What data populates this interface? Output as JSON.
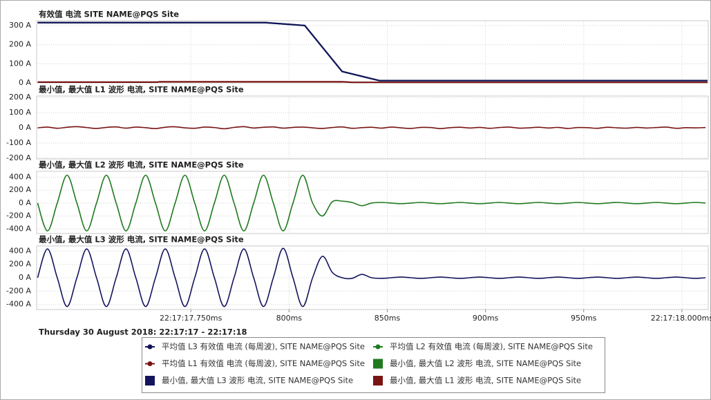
{
  "chart_data": [
    {
      "type": "line",
      "title": "有效值 电流 SITE NAME@PQS Site",
      "marker": "circle",
      "x": [
        672,
        733,
        734,
        788,
        808,
        827,
        832,
        846,
        1013
      ],
      "xlim": [
        671.5,
        1013.4
      ],
      "ylim": [
        0,
        325
      ],
      "yticks": [
        {
          "value": 0,
          "label": "0 A"
        },
        {
          "value": 100,
          "label": "100 A"
        },
        {
          "value": 200,
          "label": "200 A"
        },
        {
          "value": 300,
          "label": "300 A"
        }
      ],
      "grid": true,
      "series": [
        {
          "name": "平均值 L3 有效值 电流 (每周波), SITE NAME@PQS Site",
          "color": "#13135e",
          "values": [
            315,
            315,
            315,
            315,
            300,
            60,
            47,
            12,
            12
          ]
        },
        {
          "name": "平均值 L2 有效值 电流 (每周波), SITE NAME@PQS Site",
          "color": "#1f7a1f",
          "values": [
            315,
            315,
            315,
            315,
            300,
            60,
            47,
            12,
            12
          ]
        },
        {
          "name": "平均值 L1 有效值 电流 (每周波), SITE NAME@PQS Site",
          "color": "#7a1414",
          "values": [
            4,
            4,
            6,
            6,
            6,
            6,
            3,
            3,
            3
          ]
        }
      ]
    },
    {
      "type": "line",
      "title": "最小值, 最大值 L1 波形 电流, SITE NAME@PQS Site",
      "marker": "square",
      "x": [
        672,
        677,
        682,
        687,
        692,
        697,
        702,
        707,
        712,
        717,
        722,
        727,
        732,
        737,
        742,
        747,
        752,
        757,
        762,
        767,
        772,
        777,
        782,
        787,
        792,
        797,
        802,
        807,
        812,
        817,
        822,
        827,
        832,
        837,
        842,
        847,
        852,
        857,
        862,
        867,
        872,
        877,
        882,
        887,
        892,
        897,
        902,
        907,
        912,
        917,
        922,
        927,
        932,
        937,
        942,
        947,
        952,
        957,
        962,
        967,
        972,
        977,
        982,
        987,
        992,
        997,
        1002,
        1007,
        1012
      ],
      "xlim": [
        671.5,
        1013.4
      ],
      "ylim": [
        -205,
        210
      ],
      "yticks": [
        {
          "value": -200,
          "label": "-200 A"
        },
        {
          "value": -100,
          "label": "-100 A"
        },
        {
          "value": 0,
          "label": "0 A"
        },
        {
          "value": 100,
          "label": "100 A"
        },
        {
          "value": 200,
          "label": "200 A"
        }
      ],
      "grid": true,
      "series": [
        {
          "name": "最小值, 最大值  L1 波形 电流, SITE NAME@PQS Site",
          "color": "#7a1414",
          "values": [
            0,
            5,
            -3,
            4,
            8,
            2,
            -4,
            3,
            6,
            -2,
            5,
            1,
            -5,
            4,
            7,
            0,
            -3,
            5,
            2,
            -6,
            3,
            8,
            -1,
            4,
            6,
            -2,
            3,
            5,
            0,
            -4,
            2,
            6,
            -3,
            1,
            4,
            -2,
            5,
            0,
            -4,
            3,
            2,
            -5,
            1,
            4,
            -1,
            3,
            -3,
            2,
            5,
            -2,
            0,
            4,
            -1,
            3,
            -4,
            2,
            1,
            -3,
            4,
            0,
            -2,
            3,
            -1,
            2,
            5,
            -3,
            1,
            0,
            2
          ]
        }
      ]
    },
    {
      "type": "line",
      "title": "最小值, 最大值 L2 波形 电流, SITE NAME@PQS Site",
      "marker": "square",
      "x": [
        672,
        677,
        682,
        687,
        692,
        697,
        702,
        707,
        712,
        717,
        722,
        727,
        732,
        737,
        742,
        747,
        752,
        757,
        762,
        767,
        772,
        777,
        782,
        787,
        792,
        797,
        802,
        807,
        812,
        817,
        822,
        827,
        832,
        837,
        842,
        847,
        852,
        857,
        862,
        867,
        872,
        877,
        882,
        887,
        892,
        897,
        902,
        907,
        912,
        917,
        922,
        927,
        932,
        937,
        942,
        947,
        952,
        957,
        962,
        967,
        972,
        977,
        982,
        987,
        992,
        997,
        1002,
        1007,
        1012
      ],
      "xlim": [
        671.5,
        1013.4
      ],
      "ylim": [
        -470,
        490
      ],
      "yticks": [
        {
          "value": -400,
          "label": "-400 A"
        },
        {
          "value": -200,
          "label": "-200 A"
        },
        {
          "value": 0,
          "label": "0 A"
        },
        {
          "value": 200,
          "label": "200 A"
        },
        {
          "value": 400,
          "label": "400 A"
        }
      ],
      "grid": true,
      "series": [
        {
          "name": "最小值, 最大值  L2 波形 电流, SITE NAME@PQS Site",
          "color": "#1f7a1f",
          "values": [
            0,
            -430,
            0,
            430,
            0,
            -430,
            0,
            430,
            0,
            -430,
            0,
            430,
            0,
            -430,
            0,
            430,
            0,
            -430,
            0,
            430,
            0,
            -430,
            0,
            430,
            0,
            -430,
            0,
            430,
            0,
            -200,
            20,
            30,
            10,
            -40,
            0,
            10,
            0,
            -10,
            0,
            10,
            0,
            -10,
            0,
            10,
            0,
            -10,
            0,
            10,
            0,
            -10,
            0,
            10,
            0,
            -10,
            0,
            10,
            0,
            -10,
            0,
            10,
            0,
            -10,
            0,
            10,
            0,
            -10,
            0,
            10,
            0
          ]
        }
      ]
    },
    {
      "type": "line",
      "title": "最小值, 最大值 L3 波形 电流, SITE NAME@PQS Site",
      "marker": "square",
      "xlabel": "Thursday 30 August 2018: 22:17:17 - 22:17:18",
      "x": [
        672,
        677,
        682,
        687,
        692,
        697,
        702,
        707,
        712,
        717,
        722,
        727,
        732,
        737,
        742,
        747,
        752,
        757,
        762,
        767,
        772,
        777,
        782,
        787,
        792,
        797,
        802,
        807,
        812,
        817,
        822,
        827,
        832,
        837,
        842,
        847,
        852,
        857,
        862,
        867,
        872,
        877,
        882,
        887,
        892,
        897,
        902,
        907,
        912,
        917,
        922,
        927,
        932,
        937,
        942,
        947,
        952,
        957,
        962,
        967,
        972,
        977,
        982,
        987,
        992,
        997,
        1002,
        1007,
        1012
      ],
      "xlim": [
        671.5,
        1013.4
      ],
      "ylim": [
        -475,
        475
      ],
      "xticks": [
        {
          "value": 750,
          "label": "22:17:17.750ms"
        },
        {
          "value": 800,
          "label": "800ms"
        },
        {
          "value": 850,
          "label": "850ms"
        },
        {
          "value": 900,
          "label": "900ms"
        },
        {
          "value": 950,
          "label": "950ms"
        },
        {
          "value": 1000,
          "label": "22:17:18.000ms"
        }
      ],
      "yticks": [
        {
          "value": -400,
          "label": "-400 A"
        },
        {
          "value": -200,
          "label": "-200 A"
        },
        {
          "value": 0,
          "label": "0 A"
        },
        {
          "value": 200,
          "label": "200 A"
        },
        {
          "value": 400,
          "label": "400 A"
        }
      ],
      "grid": true,
      "series": [
        {
          "name": "最小值, 最大值  L3 波形 电流, SITE NAME@PQS Site",
          "color": "#13135e",
          "values": [
            0,
            430,
            0,
            -430,
            0,
            430,
            0,
            -430,
            0,
            430,
            0,
            -430,
            0,
            430,
            0,
            -430,
            0,
            430,
            0,
            -430,
            0,
            430,
            0,
            -430,
            0,
            440,
            0,
            -430,
            0,
            320,
            80,
            0,
            -10,
            50,
            0,
            -10,
            0,
            10,
            0,
            -10,
            0,
            10,
            0,
            -10,
            0,
            10,
            0,
            -10,
            0,
            10,
            0,
            -10,
            0,
            10,
            0,
            -10,
            0,
            10,
            0,
            -10,
            0,
            10,
            0,
            -10,
            0,
            10,
            0,
            -10,
            0
          ]
        }
      ]
    }
  ]
}
